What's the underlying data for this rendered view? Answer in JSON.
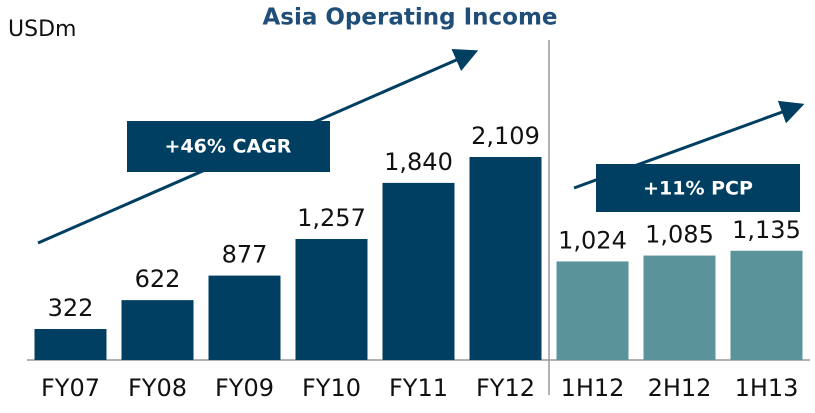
{
  "chart_data": {
    "type": "bar",
    "title": "Asia Operating Income",
    "unit_label": "USDm",
    "categories": [
      "FY07",
      "FY08",
      "FY09",
      "FY10",
      "FY11",
      "FY12",
      "1H12",
      "2H12",
      "1H13"
    ],
    "values": [
      322,
      622,
      877,
      1257,
      1840,
      2109,
      1024,
      1085,
      1135
    ],
    "value_labels": [
      "322",
      "622",
      "877",
      "1,257",
      "1,840",
      "2,109",
      "1,024",
      "1,085",
      "1,135"
    ],
    "colors": [
      "#003f62",
      "#003f62",
      "#003f62",
      "#003f62",
      "#003f62",
      "#003f62",
      "#5a939a",
      "#5a939a",
      "#5a939a"
    ],
    "annotations": [
      "+46% CAGR",
      "+11% PCP"
    ]
  }
}
